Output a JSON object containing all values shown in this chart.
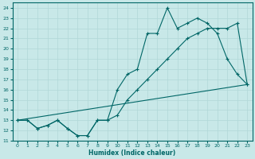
{
  "xlabel": "Humidex (Indice chaleur)",
  "bg_color": "#c8e8e8",
  "line_color": "#006666",
  "grid_color": "#b0d8d8",
  "xlim": [
    -0.5,
    23.5
  ],
  "ylim": [
    11,
    24.5
  ],
  "xticks": [
    0,
    1,
    2,
    3,
    4,
    5,
    6,
    7,
    8,
    9,
    10,
    11,
    12,
    13,
    14,
    15,
    16,
    17,
    18,
    19,
    20,
    21,
    22,
    23
  ],
  "yticks": [
    11,
    12,
    13,
    14,
    15,
    16,
    17,
    18,
    19,
    20,
    21,
    22,
    23,
    24
  ],
  "line1_x": [
    0,
    1,
    2,
    3,
    4,
    5,
    6,
    7,
    8,
    9,
    10,
    11,
    12,
    13,
    14,
    15,
    16,
    17,
    18,
    19,
    20,
    21,
    22,
    23
  ],
  "line1_y": [
    13,
    13,
    12.2,
    12.5,
    13,
    12.2,
    11.5,
    11.5,
    13,
    13,
    16,
    17.5,
    18,
    21.5,
    21.5,
    24,
    22,
    22.5,
    23,
    22.5,
    21.5,
    19,
    17.5,
    16.5
  ],
  "line2_x": [
    0,
    1,
    2,
    3,
    4,
    5,
    6,
    7,
    8,
    9,
    10,
    11,
    12,
    13,
    14,
    15,
    16,
    17,
    18,
    19,
    20,
    21,
    22,
    23
  ],
  "line2_y": [
    13,
    13,
    12.2,
    12.5,
    13,
    12.2,
    11.5,
    11.5,
    13,
    13,
    13.5,
    15,
    16,
    17,
    18,
    19,
    20,
    21,
    21.5,
    22,
    22,
    22,
    22.5,
    16.5
  ],
  "line3_x": [
    0,
    23
  ],
  "line3_y": [
    13,
    16.5
  ]
}
